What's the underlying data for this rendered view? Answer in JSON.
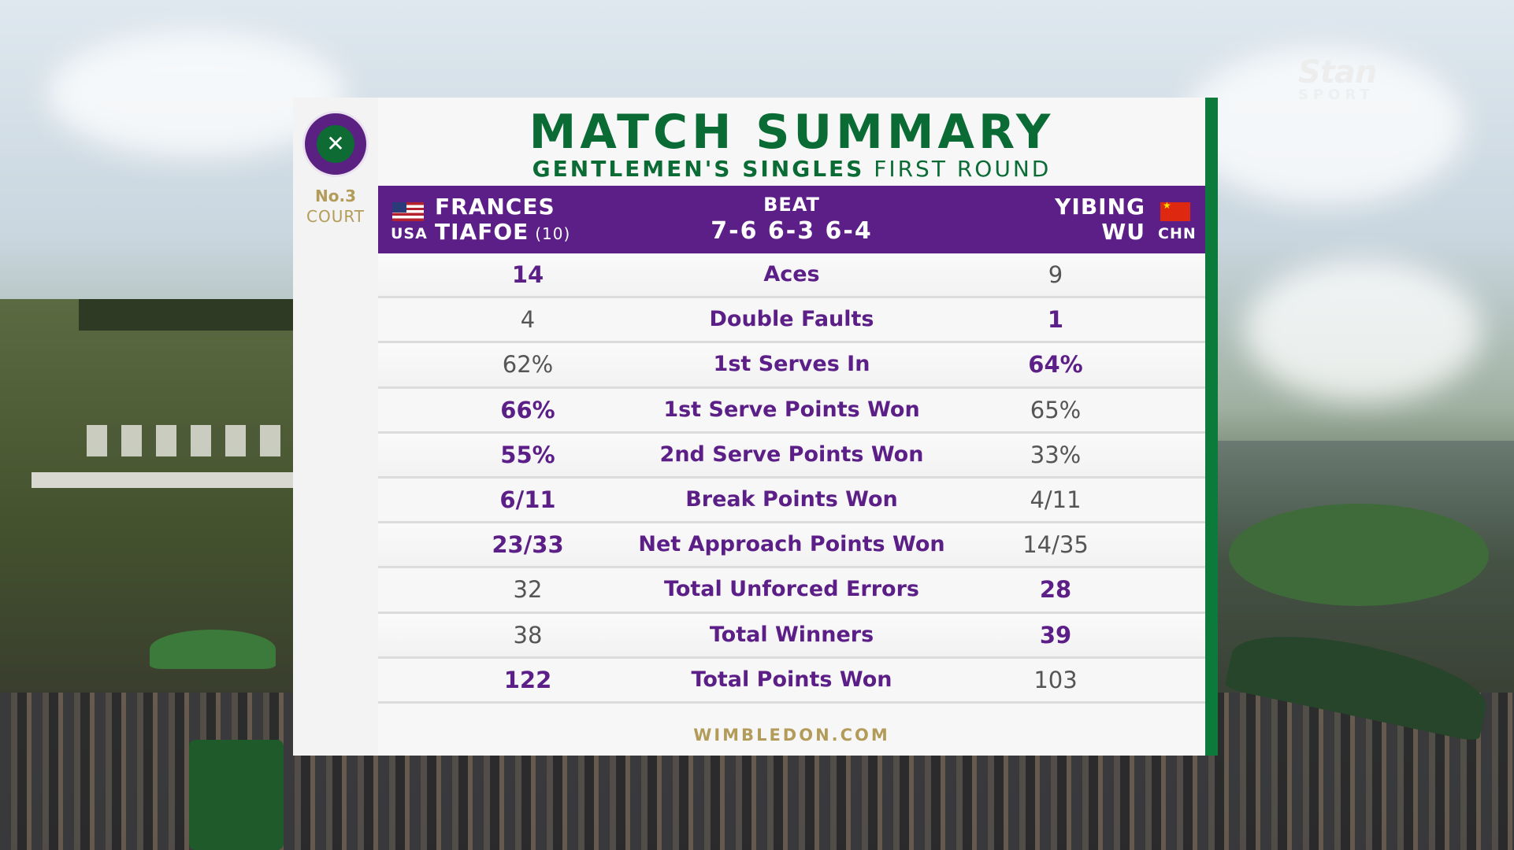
{
  "broadcaster": {
    "name": "Stan",
    "sub": "SPORT"
  },
  "court": {
    "number": "No.3",
    "label": "COURT"
  },
  "header": {
    "title": "MATCH SUMMARY",
    "subtitle_bold": "GENTLEMEN'S SINGLES",
    "subtitle_light": "FIRST ROUND"
  },
  "match": {
    "player1": {
      "first": "FRANCES",
      "last": "TIAFOE",
      "seed": "(10)",
      "country": "USA"
    },
    "player2": {
      "first": "YIBING",
      "last": "WU",
      "country": "CHN"
    },
    "result_label": "BEAT",
    "score": "7-6 6-3 6-4"
  },
  "stats": [
    {
      "label": "Aces",
      "p1": "14",
      "p2": "9",
      "p1_bold": true,
      "p2_bold": false
    },
    {
      "label": "Double Faults",
      "p1": "4",
      "p2": "1",
      "p1_bold": false,
      "p2_bold": true
    },
    {
      "label": "1st Serves In",
      "p1": "62%",
      "p2": "64%",
      "p1_bold": false,
      "p2_bold": true
    },
    {
      "label": "1st Serve Points Won",
      "p1": "66%",
      "p2": "65%",
      "p1_bold": true,
      "p2_bold": false
    },
    {
      "label": "2nd Serve Points Won",
      "p1": "55%",
      "p2": "33%",
      "p1_bold": true,
      "p2_bold": false
    },
    {
      "label": "Break Points Won",
      "p1": "6/11",
      "p2": "4/11",
      "p1_bold": true,
      "p2_bold": false
    },
    {
      "label": "Net Approach Points Won",
      "p1": "23/33",
      "p2": "14/35",
      "p1_bold": true,
      "p2_bold": false
    },
    {
      "label": "Total Unforced Errors",
      "p1": "32",
      "p2": "28",
      "p1_bold": false,
      "p2_bold": true
    },
    {
      "label": "Total Winners",
      "p1": "38",
      "p2": "39",
      "p1_bold": false,
      "p2_bold": true
    },
    {
      "label": "Total Points Won",
      "p1": "122",
      "p2": "103",
      "p1_bold": true,
      "p2_bold": false
    }
  ],
  "footer": {
    "site": "WIMBLEDON.COM"
  },
  "colors": {
    "purple": "#5b1f87",
    "green": "#0b6b35",
    "gold": "#b39b5a"
  },
  "icons": {
    "logo": "wimbledon-crossed-rackets-icon",
    "flag_left": "usa-flag-icon",
    "flag_right": "china-flag-icon"
  }
}
